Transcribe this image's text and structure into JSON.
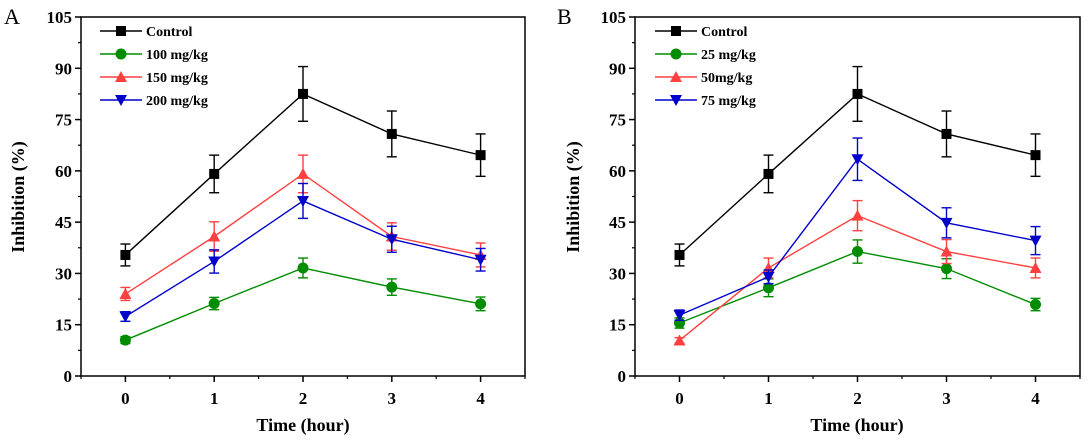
{
  "chart_data": [
    {
      "type": "line",
      "panel_label": "A",
      "xlabel": "Time (hour)",
      "ylabel": "Inhibition (%)",
      "x": [
        0,
        1,
        2,
        3,
        4
      ],
      "x_ticks": [
        "0",
        "1",
        "2",
        "3",
        "4"
      ],
      "xlim": [
        -0.5,
        4.5
      ],
      "ylim": [
        0,
        105
      ],
      "y_ticks": [
        "0",
        "15",
        "30",
        "45",
        "60",
        "75",
        "90",
        "105"
      ],
      "y_tick_values": [
        0,
        15,
        30,
        45,
        60,
        75,
        90,
        105
      ],
      "grid": false,
      "legend_position": "top-left",
      "series": [
        {
          "name": "Control",
          "color": "#000000",
          "marker": "square",
          "values": [
            35.4,
            59.1,
            82.5,
            70.8,
            64.6
          ],
          "errors": [
            3.2,
            5.5,
            8.0,
            6.7,
            6.2
          ]
        },
        {
          "name": "100 mg/kg",
          "color": "#008C00",
          "marker": "circle",
          "values": [
            10.5,
            21.2,
            31.6,
            26.0,
            21.1
          ],
          "errors": [
            1.0,
            1.8,
            2.9,
            2.4,
            2.0
          ]
        },
        {
          "name": "150 mg/kg",
          "color": "#FF4040",
          "marker": "triangle-up",
          "values": [
            24.0,
            40.8,
            59.1,
            40.8,
            35.4
          ],
          "errors": [
            1.9,
            4.3,
            5.5,
            4.0,
            3.5
          ]
        },
        {
          "name": "200 mg/kg",
          "color": "#0000CC",
          "marker": "triangle-down",
          "values": [
            17.4,
            33.5,
            51.2,
            40.0,
            34.0
          ],
          "errors": [
            1.4,
            3.4,
            5.1,
            3.8,
            3.3
          ]
        }
      ]
    },
    {
      "type": "line",
      "panel_label": "B",
      "xlabel": "Time (hour)",
      "ylabel": "Inhibition (%)",
      "x": [
        0,
        1,
        2,
        3,
        4
      ],
      "x_ticks": [
        "0",
        "1",
        "2",
        "3",
        "4"
      ],
      "xlim": [
        -0.5,
        4.5
      ],
      "ylim": [
        0,
        105
      ],
      "y_ticks": [
        "0",
        "15",
        "30",
        "45",
        "60",
        "75",
        "90",
        "105"
      ],
      "y_tick_values": [
        0,
        15,
        30,
        45,
        60,
        75,
        90,
        105
      ],
      "grid": false,
      "legend_position": "top-left",
      "series": [
        {
          "name": "Control",
          "color": "#000000",
          "marker": "square",
          "values": [
            35.4,
            59.1,
            82.5,
            70.8,
            64.6
          ],
          "errors": [
            3.2,
            5.5,
            8.0,
            6.7,
            6.2
          ]
        },
        {
          "name": "25 mg/kg",
          "color": "#008C00",
          "marker": "circle",
          "values": [
            15.5,
            25.8,
            36.4,
            31.4,
            20.9
          ],
          "errors": [
            1.5,
            2.6,
            3.4,
            2.9,
            1.8
          ]
        },
        {
          "name": "50mg/kg",
          "color": "#FF4040",
          "marker": "triangle-up",
          "values": [
            10.4,
            31.6,
            46.9,
            36.4,
            31.6
          ],
          "errors": [
            0.8,
            2.9,
            4.4,
            3.5,
            2.9
          ]
        },
        {
          "name": "75 mg/kg",
          "color": "#0000CC",
          "marker": "triangle-down",
          "values": [
            17.8,
            29.0,
            63.4,
            44.8,
            39.6
          ],
          "errors": [
            1.5,
            2.0,
            6.2,
            4.4,
            4.1
          ]
        }
      ]
    }
  ]
}
